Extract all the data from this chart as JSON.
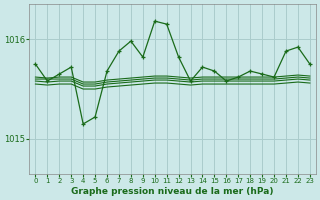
{
  "title": "Graphe pression niveau de la mer (hPa)",
  "bg_color": "#cce8e8",
  "grid_color": "#aacccc",
  "line_color": "#1a6b1a",
  "xlim": [
    -0.5,
    23.5
  ],
  "ylim": [
    1014.65,
    1016.35
  ],
  "yticks": [
    1015,
    1016
  ],
  "xticks": [
    0,
    1,
    2,
    3,
    4,
    5,
    6,
    7,
    8,
    9,
    10,
    11,
    12,
    13,
    14,
    15,
    16,
    17,
    18,
    19,
    20,
    21,
    22,
    23
  ],
  "main_y": [
    1015.75,
    1015.58,
    1015.65,
    1015.72,
    1015.15,
    1015.22,
    1015.68,
    1015.88,
    1015.98,
    1015.82,
    1016.18,
    1016.15,
    1015.82,
    1015.58,
    1015.72,
    1015.68,
    1015.58,
    1015.62,
    1015.68,
    1015.65,
    1015.62,
    1015.88,
    1015.92,
    1015.75
  ],
  "flat_lines": [
    [
      1015.6,
      1015.6,
      1015.6,
      1015.6,
      1015.55,
      1015.55,
      1015.57,
      1015.58,
      1015.59,
      1015.6,
      1015.61,
      1015.61,
      1015.6,
      1015.59,
      1015.6,
      1015.6,
      1015.6,
      1015.6,
      1015.6,
      1015.6,
      1015.6,
      1015.61,
      1015.62,
      1015.61
    ],
    [
      1015.58,
      1015.57,
      1015.58,
      1015.58,
      1015.53,
      1015.53,
      1015.55,
      1015.56,
      1015.57,
      1015.58,
      1015.59,
      1015.59,
      1015.58,
      1015.57,
      1015.58,
      1015.58,
      1015.58,
      1015.58,
      1015.58,
      1015.58,
      1015.58,
      1015.59,
      1015.6,
      1015.59
    ],
    [
      1015.62,
      1015.61,
      1015.62,
      1015.62,
      1015.57,
      1015.57,
      1015.59,
      1015.6,
      1015.61,
      1015.62,
      1015.63,
      1015.63,
      1015.62,
      1015.61,
      1015.62,
      1015.62,
      1015.62,
      1015.62,
      1015.62,
      1015.62,
      1015.62,
      1015.63,
      1015.64,
      1015.63
    ],
    [
      1015.55,
      1015.54,
      1015.55,
      1015.55,
      1015.5,
      1015.5,
      1015.52,
      1015.53,
      1015.54,
      1015.55,
      1015.56,
      1015.56,
      1015.55,
      1015.54,
      1015.55,
      1015.55,
      1015.55,
      1015.55,
      1015.55,
      1015.55,
      1015.55,
      1015.56,
      1015.57,
      1015.56
    ]
  ]
}
